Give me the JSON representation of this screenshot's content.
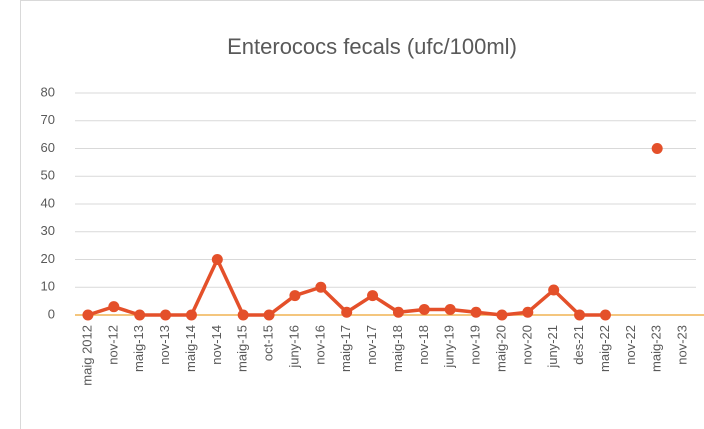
{
  "chart_data": {
    "type": "line",
    "title": "Enterococs fecals (ufc/100ml)",
    "categories": [
      "maig 2012",
      "nov-12",
      "maig-13",
      "nov-13",
      "maig-14",
      "nov-14",
      "maig-15",
      "oct-15",
      "juny-16",
      "nov-16",
      "maig-17",
      "nov-17",
      "maig-18",
      "nov-18",
      "juny-19",
      "nov-19",
      "maig-20",
      "nov-20",
      "juny-21",
      "des-21",
      "maig-22",
      "nov-22",
      "maig-23",
      "nov-23"
    ],
    "values": [
      0,
      3,
      0,
      0,
      0,
      20,
      0,
      0,
      7,
      10,
      1,
      7,
      1,
      2,
      2,
      1,
      0,
      1,
      9,
      0,
      0,
      null,
      60,
      null
    ],
    "color": "#e4502a",
    "ylim": [
      0,
      80
    ],
    "yticks": [
      0,
      10,
      20,
      30,
      40,
      50,
      60,
      70,
      80
    ],
    "grid": true
  }
}
